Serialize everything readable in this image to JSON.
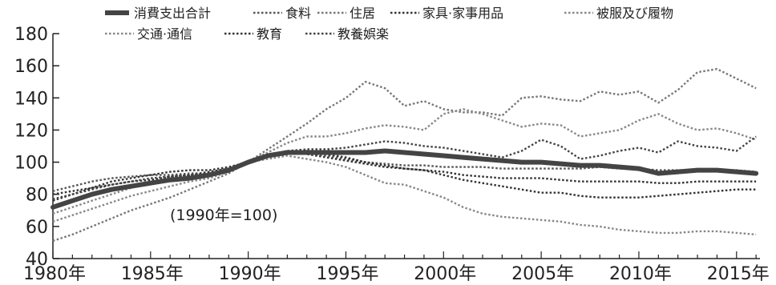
{
  "chart_data": {
    "type": "line",
    "title": "",
    "xlabel": "",
    "ylabel": "",
    "xlim": [
      1980,
      2016.2
    ],
    "ylim": [
      40,
      180
    ],
    "x_ticks": [
      1980,
      1985,
      1990,
      1995,
      2000,
      2005,
      2010,
      2015
    ],
    "x_tick_labels": [
      "1980年",
      "1985年",
      "1990年",
      "1995年",
      "2000年",
      "2005年",
      "2010年",
      "2015年"
    ],
    "y_ticks": [
      40,
      60,
      80,
      100,
      120,
      140,
      160,
      180
    ],
    "y_tick_labels": [
      "40",
      "60",
      "80",
      "100",
      "120",
      "140",
      "160",
      "180"
    ],
    "grid": false,
    "legend_position": "top",
    "annotation": "(1990年=100)",
    "x": [
      1980,
      1981,
      1982,
      1983,
      1984,
      1985,
      1986,
      1987,
      1988,
      1989,
      1990,
      1991,
      1992,
      1993,
      1994,
      1995,
      1996,
      1997,
      1998,
      1999,
      2000,
      2001,
      2002,
      2003,
      2004,
      2005,
      2006,
      2007,
      2008,
      2009,
      2010,
      2011,
      2012,
      2013,
      2014,
      2015,
      2016
    ],
    "series": [
      {
        "name": "消費支出合計",
        "style": "solid",
        "color": "#444444",
        "values": [
          72,
          76,
          80,
          83,
          85,
          87,
          89,
          90,
          92,
          95,
          100,
          104,
          106,
          106,
          106,
          106,
          106,
          107,
          106,
          105,
          104,
          103,
          102,
          101,
          100,
          100,
          99,
          98,
          98,
          97,
          96,
          93,
          94,
          95,
          95,
          94,
          93
        ]
      },
      {
        "name": "食料",
        "style": "dotted",
        "color": "#555555",
        "values": [
          82,
          85,
          88,
          90,
          91,
          92,
          92,
          93,
          93,
          95,
          100,
          104,
          107,
          106,
          104,
          102,
          100,
          99,
          98,
          98,
          97,
          97,
          97,
          96,
          96,
          96,
          96,
          96,
          97,
          96,
          96,
          95,
          95,
          95,
          95,
          95,
          94
        ]
      },
      {
        "name": "住居",
        "style": "dotted",
        "color": "#777777",
        "values": [
          51,
          55,
          60,
          65,
          70,
          74,
          78,
          83,
          88,
          93,
          100,
          108,
          116,
          124,
          133,
          140,
          150,
          146,
          135,
          138,
          133,
          131,
          131,
          129,
          140,
          141,
          139,
          138,
          144,
          142,
          144,
          137,
          145,
          156,
          158,
          152,
          146
        ]
      },
      {
        "name": "家具·家事用品",
        "style": "dotted",
        "color": "#333333",
        "values": [
          76,
          80,
          84,
          88,
          90,
          92,
          94,
          95,
          95,
          97,
          100,
          104,
          106,
          105,
          103,
          101,
          99,
          97,
          96,
          95,
          94,
          92,
          91,
          90,
          90,
          90,
          89,
          88,
          88,
          88,
          88,
          87,
          87,
          88,
          88,
          88,
          88
        ]
      },
      {
        "name": "被服及び履物",
        "style": "dotted",
        "color": "#888888",
        "values": [
          68,
          72,
          76,
          80,
          84,
          87,
          89,
          91,
          93,
          96,
          100,
          102,
          104,
          102,
          100,
          97,
          92,
          87,
          86,
          82,
          78,
          72,
          68,
          66,
          65,
          64,
          63,
          61,
          60,
          58,
          57,
          56,
          56,
          57,
          57,
          56,
          55
        ]
      },
      {
        "name": "交通·通信",
        "style": "dotted",
        "color": "#888888",
        "values": [
          63,
          67,
          71,
          75,
          79,
          82,
          85,
          88,
          90,
          94,
          100,
          106,
          112,
          116,
          116,
          118,
          121,
          123,
          122,
          120,
          130,
          133,
          130,
          126,
          122,
          124,
          123,
          116,
          118,
          120,
          126,
          130,
          124,
          120,
          121,
          118,
          114
        ]
      },
      {
        "name": "教育",
        "style": "dotted",
        "color": "#333333",
        "values": [
          80,
          82,
          84,
          86,
          88,
          89,
          91,
          92,
          94,
          96,
          100,
          104,
          106,
          107,
          105,
          103,
          100,
          98,
          96,
          95,
          92,
          89,
          87,
          85,
          83,
          81,
          81,
          79,
          78,
          78,
          78,
          79,
          80,
          81,
          82,
          83,
          83
        ]
      },
      {
        "name": "教養娯楽",
        "style": "dotted",
        "color": "#444444",
        "values": [
          77,
          80,
          83,
          86,
          88,
          90,
          91,
          92,
          93,
          95,
          100,
          104,
          107,
          108,
          108,
          109,
          111,
          113,
          112,
          110,
          109,
          107,
          105,
          103,
          107,
          114,
          110,
          102,
          104,
          107,
          109,
          106,
          113,
          110,
          109,
          107,
          116
        ]
      }
    ]
  }
}
